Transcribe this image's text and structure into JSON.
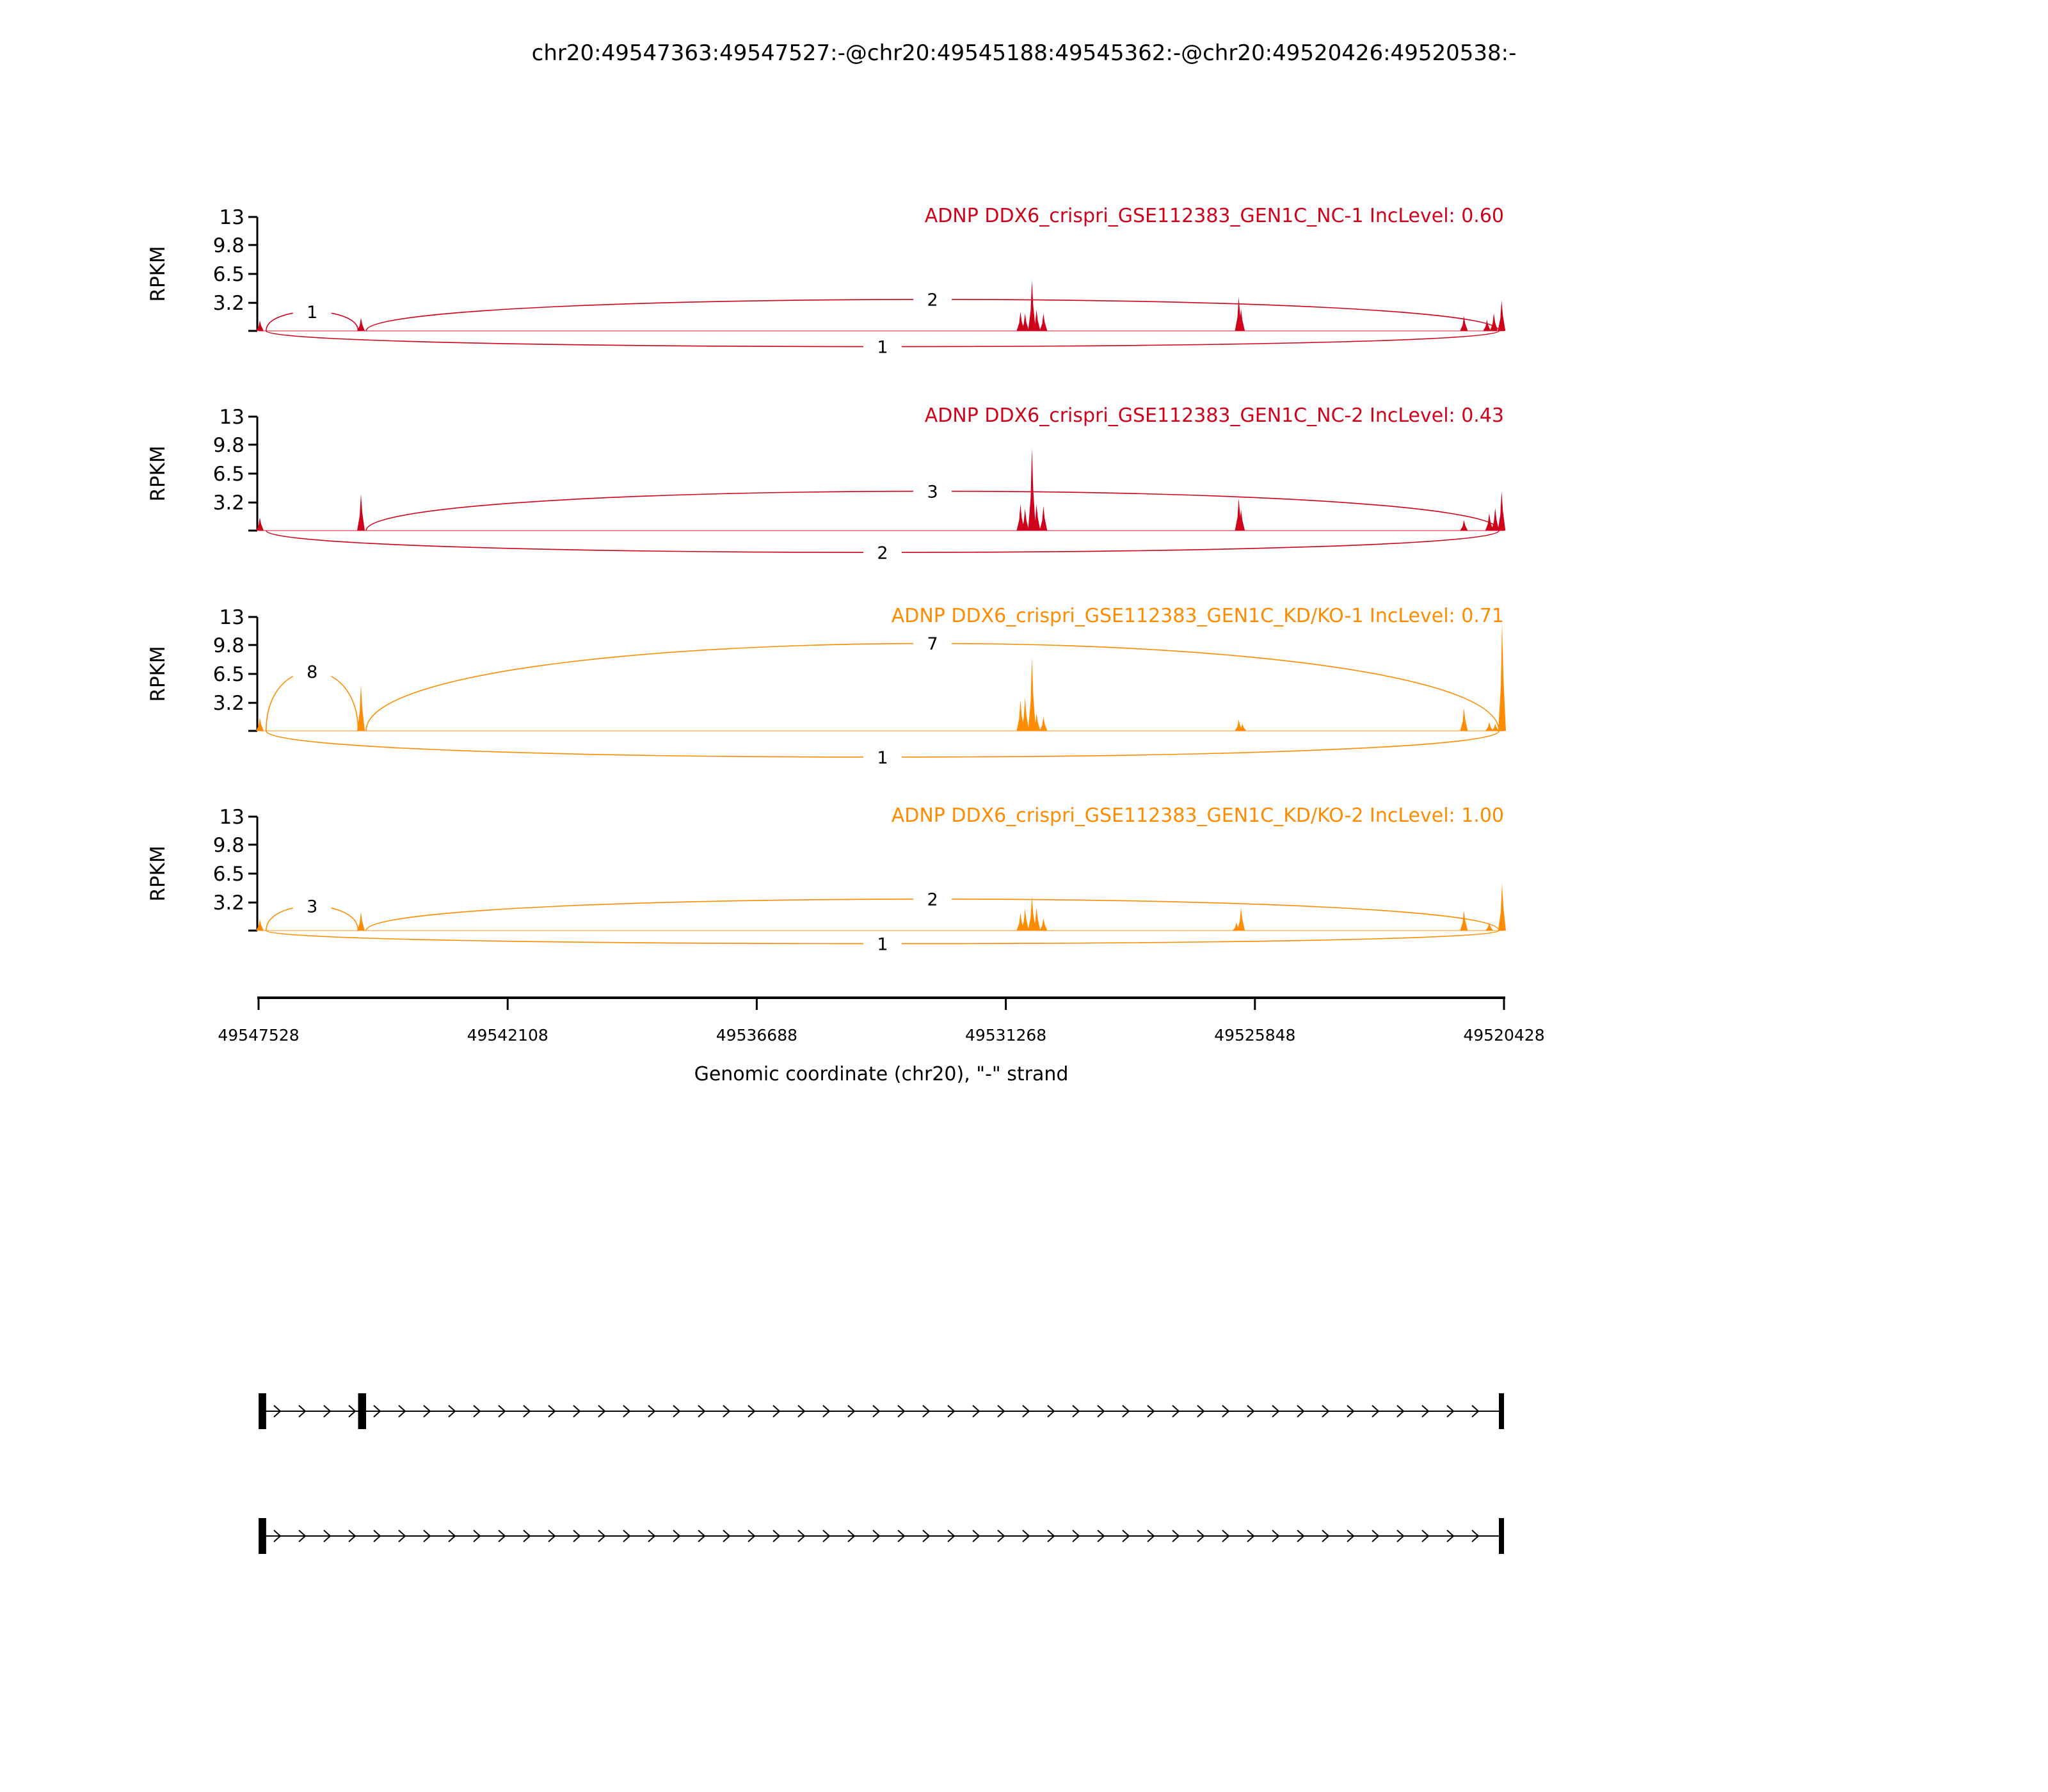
{
  "chart_data": {
    "type": "area",
    "title": "chr20:49547363:49547527:-@chr20:49545188:49545362:-@chr20:49520426:49520538:-",
    "xlabel": "Genomic coordinate (chr20), \"-\" strand",
    "xlim": [
      49547528,
      49520428
    ],
    "xticks": [
      "49547528",
      "49542108",
      "49536688",
      "49531268",
      "49525848",
      "49520428"
    ],
    "ylabel": "RPKM",
    "ylim": [
      0,
      13
    ],
    "yticks": [
      "13",
      "9.8",
      "6.5",
      "3.2"
    ],
    "grid": false,
    "panels": [
      {
        "title": "ADNP DDX6_crispri_GSE112383_GEN1C_NC-1 IncLevel: 0.60",
        "color": "#d0021b",
        "coverage": [
          [
            49547500,
            1.2
          ],
          [
            49545300,
            1.5
          ],
          [
            49530950,
            2.2
          ],
          [
            49530850,
            2.0
          ],
          [
            49530700,
            5.8
          ],
          [
            49530600,
            2.4
          ],
          [
            49530450,
            2.0
          ],
          [
            49526200,
            3.9
          ],
          [
            49526150,
            2.5
          ],
          [
            49521300,
            1.7
          ],
          [
            49520800,
            1.3
          ],
          [
            49520650,
            2.0
          ],
          [
            49520480,
            3.5
          ]
        ],
        "junctions": [
          {
            "from": 49547363,
            "to": 49545362,
            "count": "1",
            "side": "above"
          },
          {
            "from": 49545188,
            "to": 49520538,
            "count": "2",
            "side": "above"
          },
          {
            "from": 49547363,
            "to": 49520538,
            "count": "1",
            "side": "below"
          }
        ]
      },
      {
        "title": "ADNP DDX6_crispri_GSE112383_GEN1C_NC-2 IncLevel: 0.43",
        "color": "#d0021b",
        "coverage": [
          [
            49547500,
            1.5
          ],
          [
            49545300,
            4.2
          ],
          [
            49530950,
            3.0
          ],
          [
            49530850,
            2.5
          ],
          [
            49530700,
            9.4
          ],
          [
            49530600,
            3.0
          ],
          [
            49530450,
            2.8
          ],
          [
            49526200,
            3.7
          ],
          [
            49526150,
            2.4
          ],
          [
            49521300,
            1.2
          ],
          [
            49520750,
            2.0
          ],
          [
            49520620,
            2.6
          ],
          [
            49520480,
            4.5
          ]
        ],
        "junctions": [
          {
            "from": 49545188,
            "to": 49520538,
            "count": "3",
            "side": "above"
          },
          {
            "from": 49547363,
            "to": 49520538,
            "count": "2",
            "side": "below"
          }
        ]
      },
      {
        "title": "ADNP DDX6_crispri_GSE112383_GEN1C_KD/KO-1 IncLevel: 0.71",
        "color": "#ff8c00",
        "coverage": [
          [
            49547500,
            1.5
          ],
          [
            49545300,
            5.3
          ],
          [
            49530950,
            3.5
          ],
          [
            49530850,
            3.8
          ],
          [
            49530700,
            8.4
          ],
          [
            49530600,
            2.0
          ],
          [
            49530450,
            1.6
          ],
          [
            49526200,
            1.3
          ],
          [
            49526120,
            0.8
          ],
          [
            49521300,
            2.6
          ],
          [
            49520750,
            1.0
          ],
          [
            49520620,
            0.8
          ],
          [
            49520470,
            12.4
          ]
        ],
        "junctions": [
          {
            "from": 49547363,
            "to": 49545362,
            "count": "8",
            "side": "above"
          },
          {
            "from": 49545188,
            "to": 49520538,
            "count": "7",
            "side": "above"
          },
          {
            "from": 49547363,
            "to": 49520538,
            "count": "1",
            "side": "below"
          }
        ]
      },
      {
        "title": "ADNP DDX6_crispri_GSE112383_GEN1C_KD/KO-2 IncLevel: 1.00",
        "color": "#ff8c00",
        "coverage": [
          [
            49547500,
            1.3
          ],
          [
            49545300,
            2.1
          ],
          [
            49530950,
            2.0
          ],
          [
            49530850,
            2.5
          ],
          [
            49530700,
            3.9
          ],
          [
            49530600,
            2.6
          ],
          [
            49530450,
            1.4
          ],
          [
            49526250,
            0.9
          ],
          [
            49526150,
            2.6
          ],
          [
            49521300,
            2.3
          ],
          [
            49520750,
            0.9
          ],
          [
            49520470,
            5.4
          ]
        ],
        "junctions": [
          {
            "from": 49547363,
            "to": 49545362,
            "count": "3",
            "side": "above"
          },
          {
            "from": 49545188,
            "to": 49520538,
            "count": "2",
            "side": "above"
          },
          {
            "from": 49547363,
            "to": 49520538,
            "count": "1",
            "side": "below"
          }
        ]
      }
    ],
    "gene_tracks": [
      {
        "exons": [
          [
            49547527,
            49547363
          ],
          [
            49545362,
            49545188
          ],
          [
            49520538,
            49520426
          ]
        ],
        "strand": "-"
      },
      {
        "exons": [
          [
            49547527,
            49547363
          ],
          [
            49520538,
            49520426
          ]
        ],
        "strand": "-"
      }
    ]
  }
}
